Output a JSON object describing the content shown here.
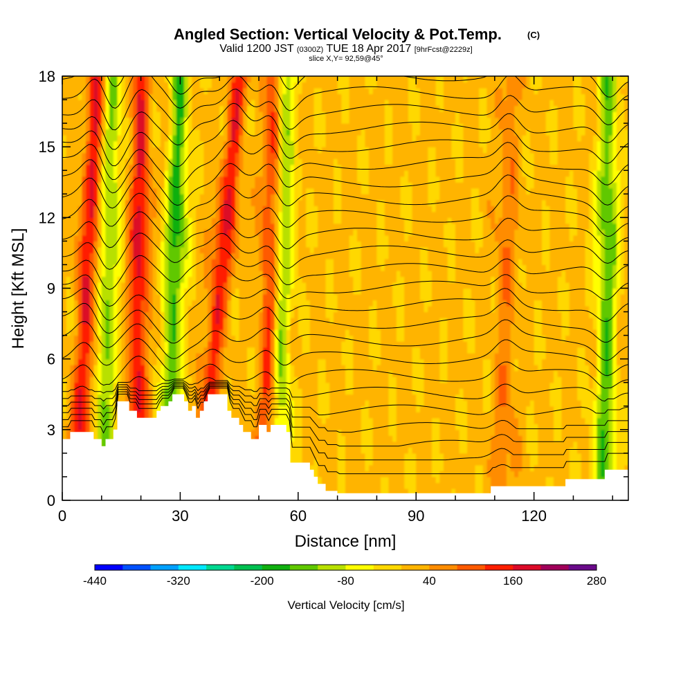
{
  "chart_data": {
    "type": "heatmap",
    "title": "Angled Section: Vertical Velocity & Pot.Temp.",
    "title_unit": "(C)",
    "subtitle": {
      "valid": "Valid 1200 JST",
      "utc": "(0300Z)",
      "date": "TUE 18 Apr 2017",
      "fcst": "[9hrFcst@2229z]"
    },
    "slice_label": "slice X,Y= 92,59@45°",
    "xlabel": "Distance [nm]",
    "ylabel": "Height [Kft MSL]",
    "xlim": [
      0,
      144
    ],
    "ylim": [
      0,
      18
    ],
    "x_ticks": [
      0,
      30,
      60,
      90,
      120
    ],
    "y_ticks": [
      0,
      3,
      6,
      9,
      12,
      15,
      18
    ],
    "colorbar": {
      "label": "Vertical Velocity [cm/s]",
      "tick_labels": [
        "-440",
        "-320",
        "-200",
        "-80",
        "40",
        "160",
        "280"
      ],
      "range": [
        -440,
        280
      ],
      "colors": [
        "#0000ff",
        "#0050ff",
        "#00a0ff",
        "#00e8ff",
        "#00d890",
        "#00c050",
        "#10b010",
        "#60c800",
        "#b8e000",
        "#ffff00",
        "#ffd800",
        "#ffb400",
        "#ff8c00",
        "#ff5a00",
        "#ff1e00",
        "#dc0a28",
        "#a0005a",
        "#6a0a8a"
      ]
    },
    "updraft_bands": [
      {
        "x_bottom": 4,
        "x_top": 9,
        "strength": 150
      },
      {
        "x_bottom": 19,
        "x_top": 20,
        "strength": 150
      },
      {
        "x_bottom": 35,
        "x_top": 45,
        "strength": 140
      },
      {
        "x_bottom": 52,
        "x_top": 54,
        "strength": 130
      },
      {
        "x_bottom": 112,
        "x_top": 114,
        "strength": 60
      }
    ],
    "downdraft_bands": [
      {
        "x_bottom": 10,
        "x_top": 13,
        "strength": -140
      },
      {
        "x_bottom": 27,
        "x_top": 30,
        "strength": -180
      },
      {
        "x_bottom": 55,
        "x_top": 57,
        "strength": -140
      },
      {
        "x_bottom": 138,
        "x_top": 139,
        "strength": -160
      }
    ],
    "terrain": [
      [
        0,
        2.6
      ],
      [
        2,
        2.9
      ],
      [
        5,
        2.9
      ],
      [
        8,
        2.6
      ],
      [
        10,
        2.3
      ],
      [
        11,
        2.6
      ],
      [
        12,
        2.6
      ],
      [
        13,
        3.0
      ],
      [
        14,
        4.2
      ],
      [
        16,
        4.2
      ],
      [
        17,
        3.8
      ],
      [
        19,
        3.5
      ],
      [
        21,
        3.5
      ],
      [
        23,
        3.5
      ],
      [
        24,
        3.8
      ],
      [
        25,
        4.0
      ],
      [
        27,
        4.2
      ],
      [
        28,
        4.5
      ],
      [
        30,
        4.5
      ],
      [
        31,
        4.2
      ],
      [
        32,
        3.8
      ],
      [
        33,
        4.0
      ],
      [
        34,
        3.5
      ],
      [
        35,
        3.8
      ],
      [
        36,
        4.2
      ],
      [
        37,
        4.5
      ],
      [
        41,
        4.5
      ],
      [
        42,
        3.8
      ],
      [
        43,
        3.5
      ],
      [
        45,
        3.2
      ],
      [
        46,
        2.9
      ],
      [
        48,
        2.6
      ],
      [
        49,
        2.6
      ],
      [
        50,
        3.2
      ],
      [
        52,
        2.9
      ],
      [
        53,
        3.2
      ],
      [
        56,
        3.2
      ],
      [
        57,
        2.9
      ],
      [
        58,
        1.6
      ],
      [
        62,
        1.6
      ],
      [
        63,
        1.3
      ],
      [
        64,
        1.0
      ],
      [
        65,
        0.7
      ],
      [
        67,
        0.4
      ],
      [
        70,
        0.3
      ],
      [
        80,
        0.3
      ],
      [
        90,
        0.3
      ],
      [
        100,
        0.3
      ],
      [
        108,
        0.3
      ],
      [
        109,
        0.6
      ],
      [
        120,
        0.6
      ],
      [
        128,
        0.9
      ],
      [
        137,
        0.9
      ],
      [
        138,
        1.3
      ],
      [
        144,
        1.3
      ]
    ]
  }
}
